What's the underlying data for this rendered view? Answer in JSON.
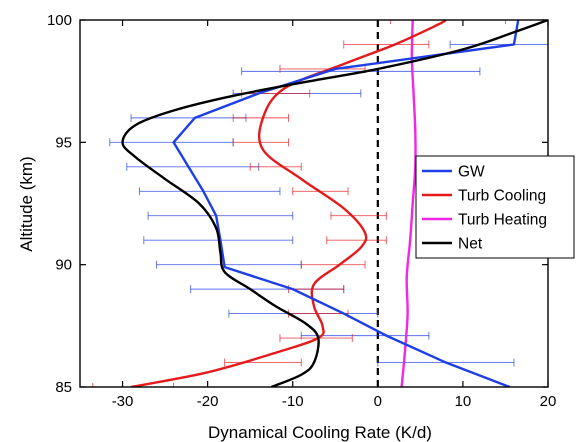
{
  "chart_data": {
    "type": "line",
    "orientation": "vertical-profile",
    "xlabel": "Dynamical Cooling Rate (K/d)",
    "ylabel": "Altitude (km)",
    "xlim": [
      -35,
      20
    ],
    "ylim": [
      85,
      100
    ],
    "xticks": [
      -30,
      -20,
      -10,
      0,
      10,
      20
    ],
    "yticks": [
      85,
      90,
      95,
      100
    ],
    "grid": false,
    "legend_position": "right",
    "zero_line": {
      "x": 0,
      "style": "dashed",
      "color": "#000000"
    },
    "series": [
      {
        "name": "GW",
        "color": "#1f3fe6",
        "points": [
          {
            "x": 15.5,
            "y": 85.0
          },
          {
            "x": 8,
            "y": 86.0
          },
          {
            "x": 1,
            "y": 87.1
          },
          {
            "x": -4,
            "y": 88.0
          },
          {
            "x": -10,
            "y": 89.0
          },
          {
            "x": -18,
            "y": 89.9
          },
          {
            "x": -18.5,
            "y": 91.0
          },
          {
            "x": -19,
            "y": 92.0
          },
          {
            "x": -20.5,
            "y": 93.0
          },
          {
            "x": -24,
            "y": 95.0
          },
          {
            "x": -21.5,
            "y": 96.0
          },
          {
            "x": -14,
            "y": 97.0
          },
          {
            "x": -5,
            "y": 98.0
          },
          {
            "x": 16,
            "y": 99.0
          },
          {
            "x": 16.5,
            "y": 100.0
          }
        ],
        "errorbars": [
          {
            "y": 86.0,
            "lo": 0,
            "hi": 16
          },
          {
            "y": 87.1,
            "lo": -9,
            "hi": 6
          },
          {
            "y": 88.0,
            "lo": -17.5,
            "hi": 0
          },
          {
            "y": 89.0,
            "lo": -22,
            "hi": -4
          },
          {
            "y": 90.0,
            "lo": -26,
            "hi": -9
          },
          {
            "y": 91.0,
            "lo": -27.5,
            "hi": -10
          },
          {
            "y": 92.0,
            "lo": -27,
            "hi": -10
          },
          {
            "y": 93.0,
            "lo": -28,
            "hi": -11.5
          },
          {
            "y": 94.0,
            "lo": -29.5,
            "hi": -14
          },
          {
            "y": 95.0,
            "lo": -31.5,
            "hi": -17
          },
          {
            "y": 96.0,
            "lo": -29,
            "hi": -15.5
          },
          {
            "y": 97.0,
            "lo": -17,
            "hi": -2
          },
          {
            "y": 97.9,
            "lo": -16,
            "hi": 12
          },
          {
            "y": 99.0,
            "lo": 8.5,
            "hi": 20
          },
          {
            "y": 100.0,
            "lo": 10,
            "hi": 20
          }
        ]
      },
      {
        "name": "Turb Cooling",
        "color": "#e41a1c",
        "points": [
          {
            "x": -29,
            "y": 85.0
          },
          {
            "x": -20,
            "y": 85.6
          },
          {
            "x": -12,
            "y": 86.4
          },
          {
            "x": -7,
            "y": 87.0
          },
          {
            "x": -6.5,
            "y": 87.5
          },
          {
            "x": -7.5,
            "y": 88.3
          },
          {
            "x": -7.5,
            "y": 89.2
          },
          {
            "x": -4.5,
            "y": 90.0
          },
          {
            "x": -2,
            "y": 90.7
          },
          {
            "x": -1.5,
            "y": 91.3
          },
          {
            "x": -4,
            "y": 92.3
          },
          {
            "x": -9,
            "y": 93.5
          },
          {
            "x": -13.5,
            "y": 94.7
          },
          {
            "x": -13.5,
            "y": 96.0
          },
          {
            "x": -11,
            "y": 97.2
          },
          {
            "x": -4,
            "y": 98.2
          },
          {
            "x": 2,
            "y": 99.0
          },
          {
            "x": 7,
            "y": 99.8
          },
          {
            "x": 8,
            "y": 100.0
          }
        ],
        "errorbars": [
          {
            "y": 85.0,
            "lo": -33.5,
            "hi": -24
          },
          {
            "y": 86.0,
            "lo": -18,
            "hi": -9
          },
          {
            "y": 87.0,
            "lo": -11.5,
            "hi": -3
          },
          {
            "y": 88.0,
            "lo": -10.5,
            "hi": -3.5
          },
          {
            "y": 89.0,
            "lo": -10.5,
            "hi": -4
          },
          {
            "y": 90.0,
            "lo": -9,
            "hi": -1.5
          },
          {
            "y": 91.0,
            "lo": -6,
            "hi": 1
          },
          {
            "y": 92.0,
            "lo": -5.5,
            "hi": 1
          },
          {
            "y": 93.0,
            "lo": -10,
            "hi": -3.5
          },
          {
            "y": 94.0,
            "lo": -15,
            "hi": -9
          },
          {
            "y": 95.0,
            "lo": -17,
            "hi": -10.5
          },
          {
            "y": 96.0,
            "lo": -17,
            "hi": -10.5
          },
          {
            "y": 97.0,
            "lo": -16,
            "hi": -8
          },
          {
            "y": 98.0,
            "lo": -11.5,
            "hi": -1.5
          },
          {
            "y": 99.0,
            "lo": -4,
            "hi": 6
          },
          {
            "y": 100.0,
            "lo": 1.5,
            "hi": 15
          }
        ]
      },
      {
        "name": "Turb Heating",
        "color": "#f226e6",
        "points": [
          {
            "x": 2.8,
            "y": 85.0
          },
          {
            "x": 3.2,
            "y": 86.5
          },
          {
            "x": 3.5,
            "y": 88.0
          },
          {
            "x": 3.4,
            "y": 89.5
          },
          {
            "x": 3.8,
            "y": 91.0
          },
          {
            "x": 4.1,
            "y": 92.5
          },
          {
            "x": 4.4,
            "y": 94.0
          },
          {
            "x": 4.4,
            "y": 95.5
          },
          {
            "x": 4.2,
            "y": 97.0
          },
          {
            "x": 4.0,
            "y": 98.5
          },
          {
            "x": 4.1,
            "y": 100.0
          }
        ]
      },
      {
        "name": "Net",
        "color": "#000000",
        "points": [
          {
            "x": -12.5,
            "y": 85.0
          },
          {
            "x": -9,
            "y": 85.5
          },
          {
            "x": -7.5,
            "y": 86.0
          },
          {
            "x": -7,
            "y": 87.0
          },
          {
            "x": -8.5,
            "y": 87.6
          },
          {
            "x": -12,
            "y": 88.3
          },
          {
            "x": -15,
            "y": 89.0
          },
          {
            "x": -18,
            "y": 89.7
          },
          {
            "x": -18.5,
            "y": 90.5
          },
          {
            "x": -19,
            "y": 91.5
          },
          {
            "x": -21,
            "y": 92.5
          },
          {
            "x": -25,
            "y": 93.5
          },
          {
            "x": -28.5,
            "y": 94.4
          },
          {
            "x": -30,
            "y": 95.0
          },
          {
            "x": -28.5,
            "y": 95.7
          },
          {
            "x": -24,
            "y": 96.3
          },
          {
            "x": -17,
            "y": 96.9
          },
          {
            "x": -8,
            "y": 97.5
          },
          {
            "x": 0,
            "y": 98.0
          },
          {
            "x": 10,
            "y": 98.8
          },
          {
            "x": 16,
            "y": 99.5
          },
          {
            "x": 20,
            "y": 100.0
          }
        ]
      }
    ]
  }
}
